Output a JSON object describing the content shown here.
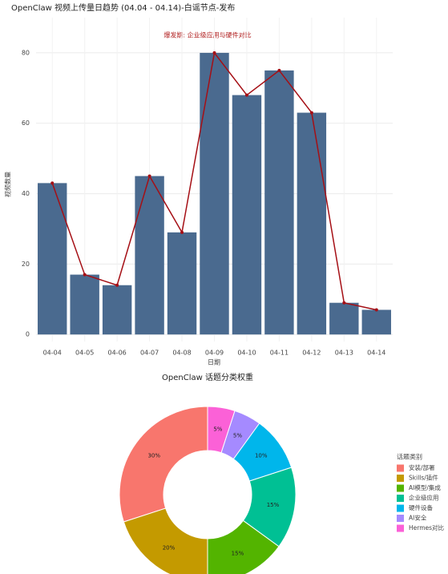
{
  "chart_data": [
    {
      "type": "bar",
      "title": "OpenClaw 视频上传量日趋势 (04.04 - 04.14)-白谣节点-发布",
      "annotation": "爆发期: 企业级应用与硬件对比",
      "x_label": "日期",
      "y_label": "视频数量",
      "categories": [
        "04-04",
        "04-05",
        "04-06",
        "04-07",
        "04-08",
        "04-09",
        "04-10",
        "04-11",
        "04-12",
        "04-13",
        "04-14"
      ],
      "values": [
        43,
        17,
        14,
        45,
        29,
        80,
        68,
        75,
        63,
        9,
        7
      ],
      "color": "#4a6a8f",
      "line_color": "#a50f15",
      "ylim": [
        -2,
        90
      ],
      "yticks": [
        0,
        20,
        40,
        60,
        80
      ],
      "grid": true
    },
    {
      "type": "pie",
      "title": "OpenClaw 话题分类权重",
      "legend_title": "话题类别",
      "donut": true,
      "categories": [
        "安装/部署",
        "Skills/插件",
        "AI模型/集成",
        "企业级应用",
        "硬件设备",
        "AI安全",
        "Hermes对比"
      ],
      "values": [
        30,
        20,
        15,
        15,
        10,
        5,
        5
      ],
      "value_labels": [
        "30%",
        "20%",
        "15%",
        "15%",
        "10%",
        "5%",
        "5%"
      ],
      "colors": [
        "#F8766D",
        "#C49A00",
        "#53B400",
        "#00C094",
        "#00B6EB",
        "#A58AFF",
        "#FB61D7"
      ]
    }
  ]
}
